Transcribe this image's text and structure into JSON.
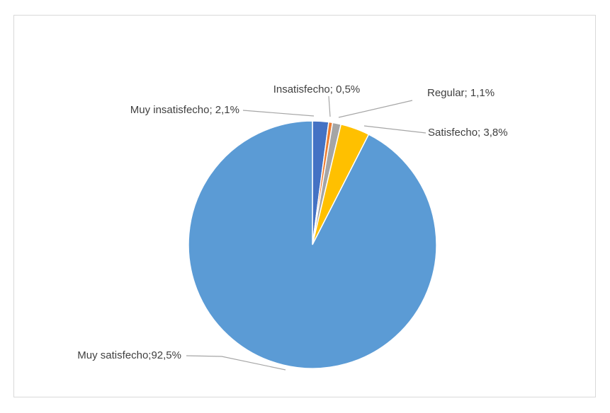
{
  "chart_data": {
    "type": "pie",
    "title": "",
    "slices": [
      {
        "category": "Muy insatisfecho",
        "value": 2.1,
        "label": "Muy insatisfecho; 2,1%",
        "color": "#4472c4"
      },
      {
        "category": "Insatisfecho",
        "value": 0.5,
        "label": "Insatisfecho; 0,5%",
        "color": "#ed7d31"
      },
      {
        "category": "Regular",
        "value": 1.1,
        "label": "Regular; 1,1%",
        "color": "#a5a5a5"
      },
      {
        "category": "Satisfecho",
        "value": 3.8,
        "label": "Satisfecho; 3,8%",
        "color": "#ffc000"
      },
      {
        "category": "Muy satisfecho",
        "value": 92.5,
        "label": "Muy satisfecho;92,5%",
        "color": "#5b9bd5"
      }
    ],
    "start_angle_deg": 0,
    "direction": "clockwise",
    "legend": "none",
    "data_labels": "outside-with-leader-lines"
  }
}
